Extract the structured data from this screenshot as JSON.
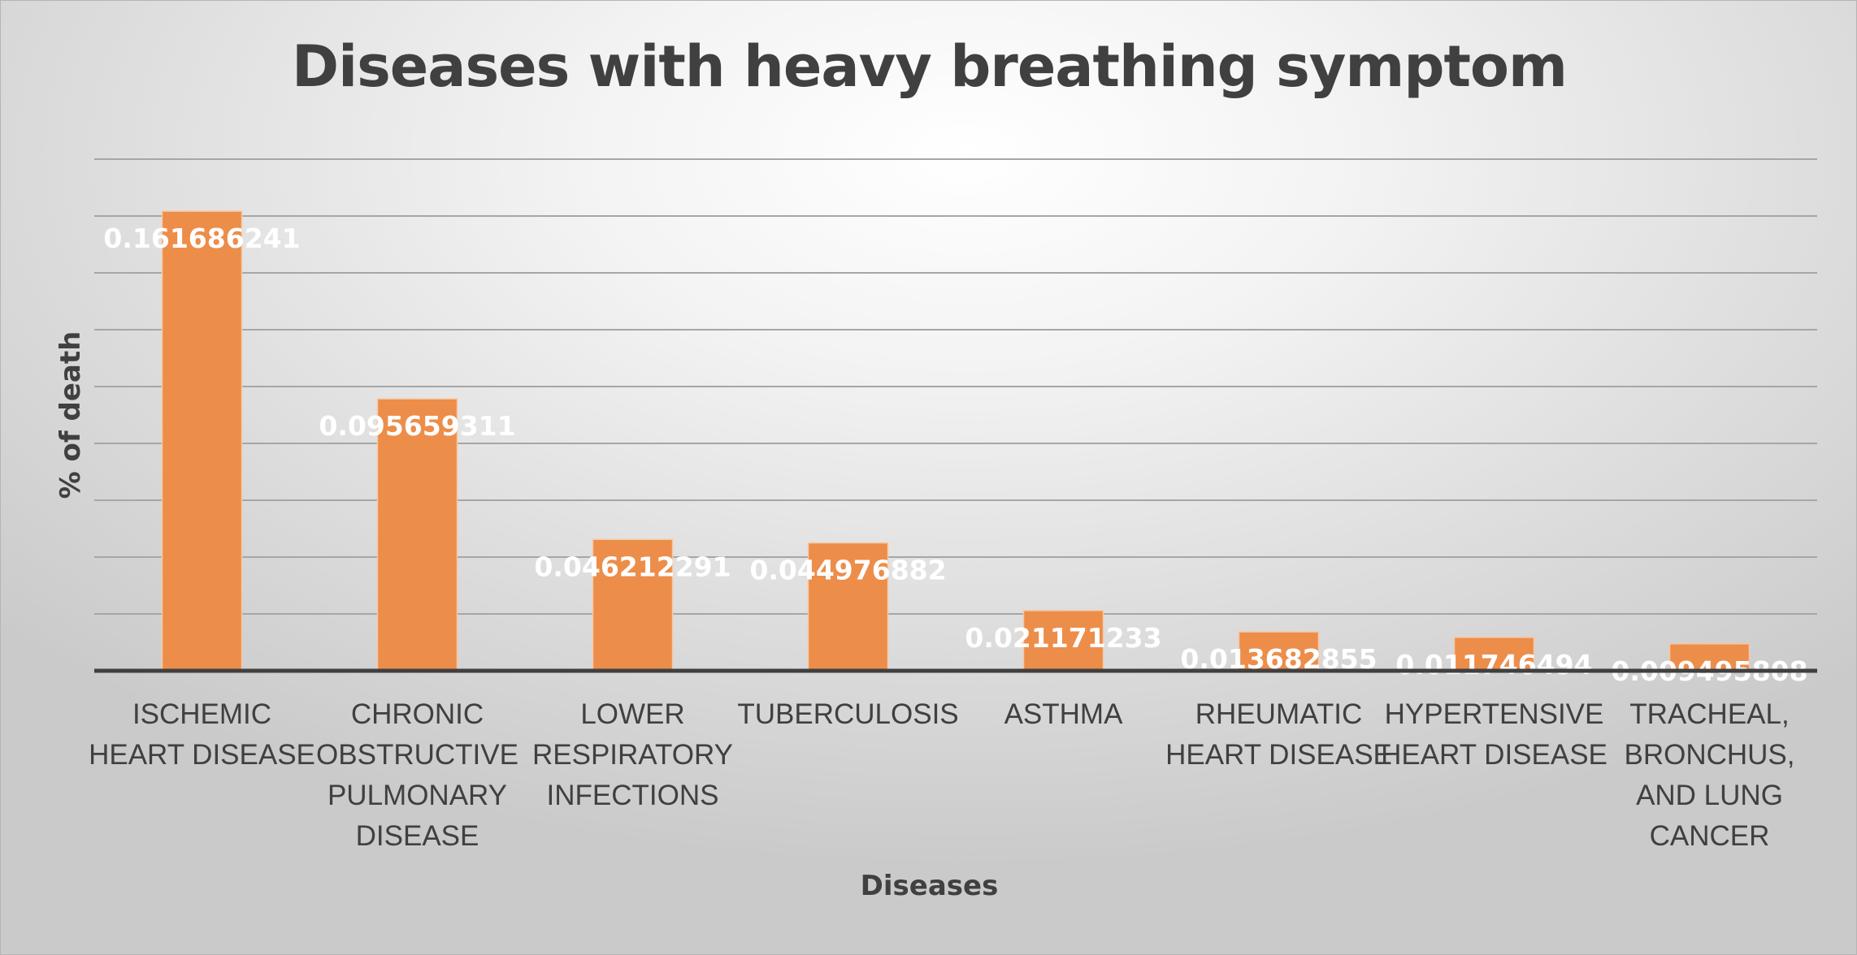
{
  "chart_data": {
    "type": "bar",
    "title": "Diseases with heavy breathing symptom",
    "xlabel": "Diseases",
    "ylabel": "% of death",
    "ylim": [
      0,
      0.18
    ],
    "grid": true,
    "bar_color": "#ed8d4a",
    "categories": [
      [
        "ISCHEMIC",
        "HEART DISEASE"
      ],
      [
        "CHRONIC",
        "OBSTRUCTIVE",
        "PULMONARY",
        "DISEASE"
      ],
      [
        "LOWER",
        "RESPIRATORY",
        "INFECTIONS"
      ],
      [
        "TUBERCULOSIS"
      ],
      [
        "ASTHMA"
      ],
      [
        "RHEUMATIC",
        "HEART DISEASE"
      ],
      [
        "HYPERTENSIVE",
        "HEART DISEASE"
      ],
      [
        "TRACHEAL,",
        "BRONCHUS,",
        "AND LUNG",
        "CANCER"
      ]
    ],
    "values": [
      0.161686241,
      0.095659311,
      0.046212291,
      0.044976882,
      0.021171233,
      0.013682855,
      0.011746494,
      0.009495808
    ],
    "data_labels": [
      "0.161686241",
      "0.095659311",
      "0.046212291",
      "0.044976882",
      "0.021171233",
      "0.013682855",
      "0.011746494",
      "0.009495808"
    ]
  }
}
